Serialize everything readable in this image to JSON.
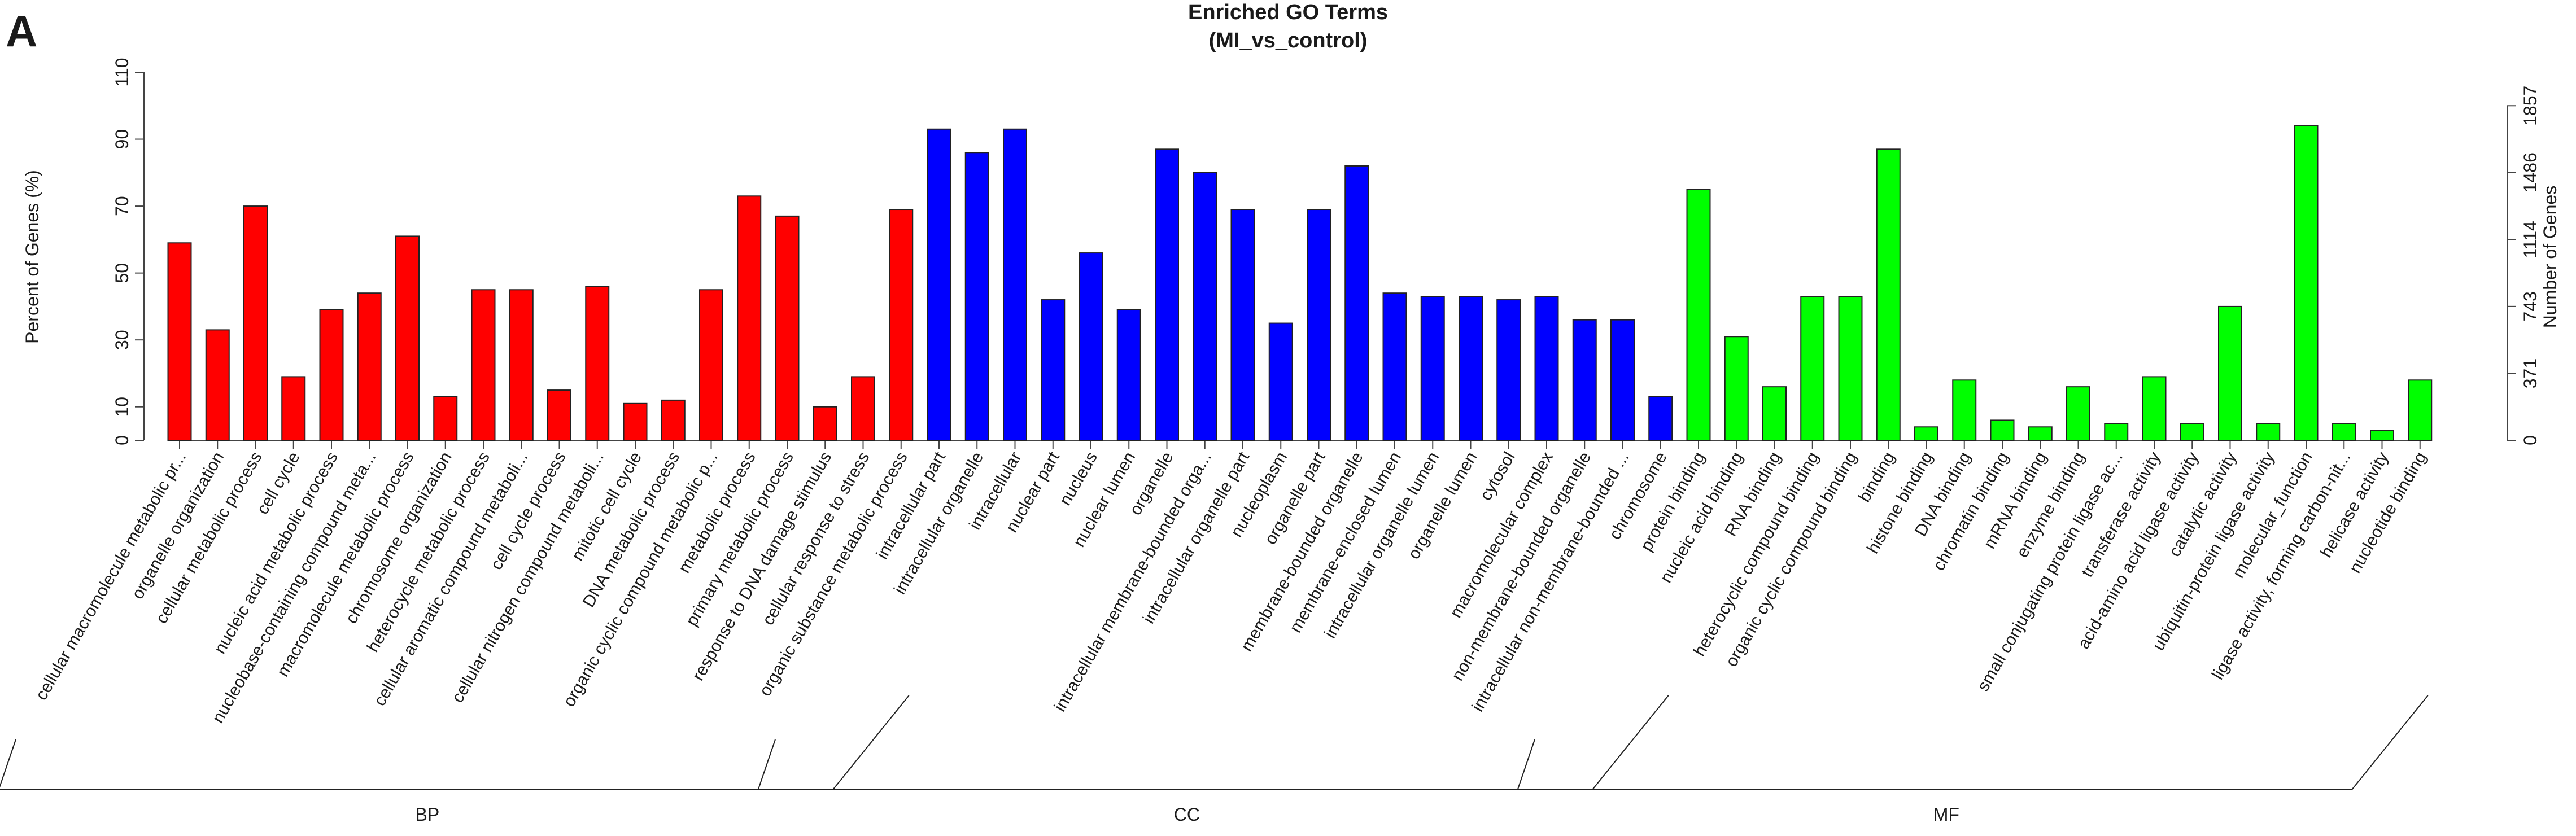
{
  "panel_label": "A",
  "chart_data": {
    "type": "bar",
    "title": "Enriched GO Terms",
    "subtitle": "(MI_vs_control)",
    "ylabel": "Percent of Genes (%)",
    "y2label": "Number of Genes",
    "ylim": [
      0,
      110
    ],
    "yticks": [
      0,
      10,
      30,
      50,
      70,
      90,
      110
    ],
    "y2ticks": [
      0,
      371,
      743,
      1114,
      1486,
      1857
    ],
    "y2max": 1857,
    "y2max_percent": 100,
    "grid": false,
    "groups": [
      {
        "name": "BP",
        "color": "#ff0000",
        "categories": [
          "cellular macromolecule metabolic pr...",
          "organelle organization",
          "cellular metabolic process",
          "cell cycle",
          "nucleic acid metabolic process",
          "nucleobase-containing compound meta...",
          "macromolecule metabolic process",
          "chromosome organization",
          "heterocycle metabolic process",
          "cellular aromatic compound metaboli...",
          "cell cycle process",
          "cellular nitrogen compound metaboli...",
          "mitotic cell cycle",
          "DNA metabolic process",
          "organic cyclic compound metabolic p...",
          "metabolic process",
          "primary metabolic process",
          "response to DNA damage stimulus",
          "cellular response to stress",
          "organic substance metabolic process"
        ],
        "values": [
          59,
          33,
          70,
          19,
          39,
          44,
          61,
          13,
          45,
          45,
          15,
          46,
          11,
          12,
          45,
          73,
          67,
          10,
          19,
          69
        ]
      },
      {
        "name": "CC",
        "color": "#0000ff",
        "categories": [
          "intracellular part",
          "intracellular organelle",
          "intracellular",
          "nuclear part",
          "nucleus",
          "nuclear lumen",
          "organelle",
          "intracellular membrane-bounded orga...",
          "intracellular organelle part",
          "nucleoplasm",
          "organelle part",
          "membrane-bounded organelle",
          "membrane-enclosed lumen",
          "intracellular organelle lumen",
          "organelle lumen",
          "cytosol",
          "macromolecular complex",
          "non-membrane-bounded organelle",
          "intracellular non-membrane-bounded ...",
          "chromosome"
        ],
        "values": [
          93,
          86,
          93,
          42,
          56,
          39,
          87,
          80,
          69,
          35,
          69,
          82,
          44,
          43,
          43,
          42,
          43,
          36,
          36,
          13
        ]
      },
      {
        "name": "MF",
        "color": "#00ff00",
        "categories": [
          "protein binding",
          "nucleic acid binding",
          "RNA binding",
          "heterocyclic compound binding",
          "organic cyclic compound binding",
          "binding",
          "histone binding",
          "DNA binding",
          "chromatin binding",
          "mRNA binding",
          "enzyme binding",
          "small conjugating protein ligase ac...",
          "transferase activity",
          "acid-amino acid ligase activity",
          "catalytic activity",
          "ubiquitin-protein ligase activity",
          "molecular_function",
          "ligase activity, forming carbon-nit...",
          "helicase activity",
          "nucleotide binding"
        ],
        "values": [
          75,
          31,
          16,
          43,
          43,
          87,
          4,
          18,
          6,
          4,
          16,
          5,
          19,
          5,
          40,
          5,
          94,
          5,
          3,
          18
        ]
      }
    ]
  }
}
